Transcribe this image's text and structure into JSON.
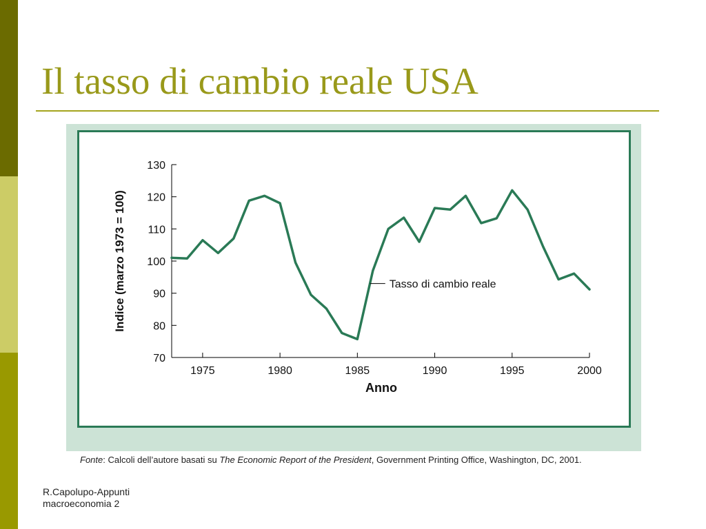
{
  "slide": {
    "title": "Il tasso di cambio reale USA",
    "footer_line1": "R.Capolupo-Appunti",
    "footer_line2": "macroeconomia 2"
  },
  "source_note": {
    "prefix": "Fonte",
    "text1": ": Calcoli dell’autore basati su ",
    "italic_title": "The Economic Report of the President",
    "text2": ", Government Printing Office, Washington, DC, 2001."
  },
  "colors": {
    "line": "#2a7a56",
    "panel": "#cce3d6",
    "title": "#99991a"
  },
  "chart_data": {
    "type": "line",
    "title": "",
    "xlabel": "Anno",
    "ylabel": "Indice (marzo 1973 = 100)",
    "xlim": [
      1973,
      2000
    ],
    "ylim": [
      70,
      130
    ],
    "xticks": [
      1975,
      1980,
      1985,
      1990,
      1995,
      2000
    ],
    "yticks": [
      70,
      80,
      90,
      100,
      110,
      120,
      130
    ],
    "grid": false,
    "annotation": {
      "text": "Tasso di cambio reale",
      "x": 1986,
      "y": 93
    },
    "series": [
      {
        "name": "Tasso di cambio reale",
        "x": [
          1973,
          1974,
          1975,
          1976,
          1977,
          1978,
          1979,
          1980,
          1981,
          1982,
          1983,
          1984,
          1985,
          1986,
          1987,
          1988,
          1989,
          1990,
          1991,
          1992,
          1993,
          1994,
          1995,
          1996,
          1997,
          1998,
          1999,
          2000
        ],
        "y": [
          101,
          100.8,
          106.5,
          102.5,
          107,
          118.8,
          120.3,
          118,
          99.5,
          89.5,
          85.2,
          77.6,
          75.7,
          97,
          110,
          113.5,
          106,
          116.5,
          116,
          120.3,
          111.8,
          113.3,
          122,
          116,
          104.5,
          94.3,
          96.1,
          91.2
        ]
      }
    ]
  }
}
